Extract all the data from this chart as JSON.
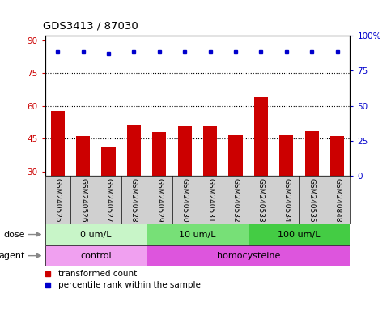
{
  "title": "GDS3413 / 87030",
  "categories": [
    "GSM240525",
    "GSM240526",
    "GSM240527",
    "GSM240528",
    "GSM240529",
    "GSM240530",
    "GSM240531",
    "GSM240532",
    "GSM240533",
    "GSM240534",
    "GSM240535",
    "GSM240848"
  ],
  "bar_values": [
    57.5,
    46.0,
    41.5,
    51.5,
    48.0,
    50.5,
    50.5,
    46.5,
    64.0,
    46.5,
    48.5,
    46.0
  ],
  "percentile_values": [
    88.5,
    88.5,
    87.5,
    88.5,
    88.5,
    88.5,
    88.5,
    88.5,
    88.5,
    88.5,
    88.5,
    88.5
  ],
  "bar_color": "#cc0000",
  "dot_color": "#0000cc",
  "ylim_left": [
    28,
    92
  ],
  "ylim_right": [
    0,
    100
  ],
  "yticks_left": [
    30,
    45,
    60,
    75,
    90
  ],
  "yticks_right": [
    0,
    25,
    50,
    75,
    100
  ],
  "ytick_labels_right": [
    "0",
    "25",
    "50",
    "75",
    "100%"
  ],
  "dotted_lines": [
    45,
    60,
    75
  ],
  "dose_groups": [
    {
      "label": "0 um/L",
      "start": 0,
      "end": 4,
      "color": "#c8f5c8"
    },
    {
      "label": "10 um/L",
      "start": 4,
      "end": 8,
      "color": "#77e077"
    },
    {
      "label": "100 um/L",
      "start": 8,
      "end": 12,
      "color": "#44cc44"
    }
  ],
  "agent_groups": [
    {
      "label": "control",
      "start": 0,
      "end": 4,
      "color": "#f0a0f0"
    },
    {
      "label": "homocysteine",
      "start": 4,
      "end": 12,
      "color": "#dd55dd"
    }
  ],
  "legend_bar_label": "transformed count",
  "legend_dot_label": "percentile rank within the sample",
  "label_bg_color": "#d0d0d0"
}
